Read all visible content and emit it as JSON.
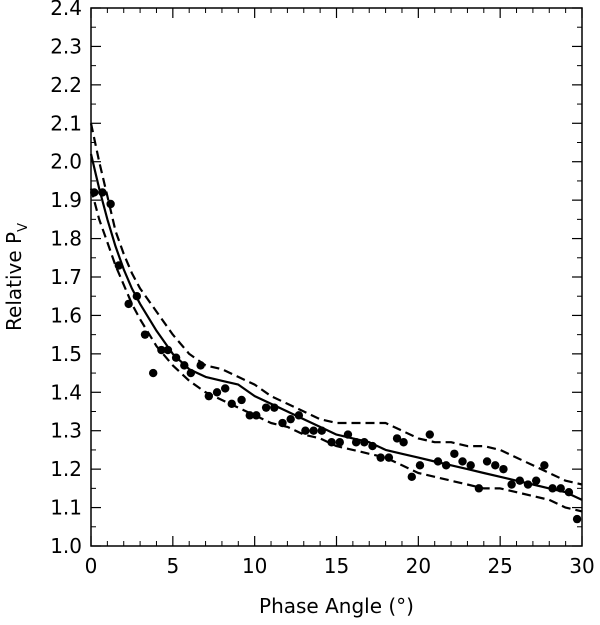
{
  "chart_data": {
    "type": "scatter",
    "xlabel": "Phase Angle (°)",
    "ylabel_main": "Relative P",
    "ylabel_sub": "V",
    "xlim": [
      0,
      30
    ],
    "ylim": [
      1.0,
      2.4
    ],
    "x_ticks": [
      "0",
      "5",
      "10",
      "15",
      "20",
      "25",
      "30"
    ],
    "y_ticks": [
      "1.0",
      "1.1",
      "1.2",
      "1.3",
      "1.4",
      "1.5",
      "1.6",
      "1.7",
      "1.8",
      "1.9",
      "2.0",
      "2.1",
      "2.2",
      "2.3",
      "2.4"
    ],
    "grid": false,
    "series": [
      {
        "style": "points",
        "points": [
          [
            0.2,
            1.92
          ],
          [
            0.7,
            1.92
          ],
          [
            1.2,
            1.89
          ],
          [
            1.7,
            1.73
          ],
          [
            2.3,
            1.63
          ],
          [
            2.8,
            1.65
          ],
          [
            3.3,
            1.55
          ],
          [
            3.8,
            1.45
          ],
          [
            4.3,
            1.51
          ],
          [
            4.7,
            1.51
          ],
          [
            5.2,
            1.49
          ],
          [
            5.7,
            1.47
          ],
          [
            6.1,
            1.45
          ],
          [
            6.7,
            1.47
          ],
          [
            7.2,
            1.39
          ],
          [
            7.7,
            1.4
          ],
          [
            8.2,
            1.41
          ],
          [
            8.6,
            1.37
          ],
          [
            9.2,
            1.38
          ],
          [
            9.7,
            1.34
          ],
          [
            10.1,
            1.34
          ],
          [
            10.7,
            1.36
          ],
          [
            11.2,
            1.36
          ],
          [
            11.7,
            1.32
          ],
          [
            12.2,
            1.33
          ],
          [
            12.7,
            1.34
          ],
          [
            13.1,
            1.3
          ],
          [
            13.6,
            1.3
          ],
          [
            14.1,
            1.3
          ],
          [
            14.7,
            1.27
          ],
          [
            15.2,
            1.27
          ],
          [
            15.7,
            1.29
          ],
          [
            16.2,
            1.27
          ],
          [
            16.7,
            1.27
          ],
          [
            17.2,
            1.26
          ],
          [
            17.7,
            1.23
          ],
          [
            18.2,
            1.23
          ],
          [
            18.7,
            1.28
          ],
          [
            19.1,
            1.27
          ],
          [
            19.6,
            1.18
          ],
          [
            20.1,
            1.21
          ],
          [
            20.7,
            1.29
          ],
          [
            21.2,
            1.22
          ],
          [
            21.7,
            1.21
          ],
          [
            22.2,
            1.24
          ],
          [
            22.7,
            1.22
          ],
          [
            23.2,
            1.21
          ],
          [
            23.7,
            1.15
          ],
          [
            24.2,
            1.22
          ],
          [
            24.7,
            1.21
          ],
          [
            25.2,
            1.2
          ],
          [
            25.7,
            1.16
          ],
          [
            26.2,
            1.17
          ],
          [
            26.7,
            1.16
          ],
          [
            27.2,
            1.17
          ],
          [
            27.7,
            1.21
          ],
          [
            28.2,
            1.15
          ],
          [
            28.7,
            1.15
          ],
          [
            29.2,
            1.14
          ],
          [
            29.7,
            1.07
          ]
        ]
      },
      {
        "style": "solid",
        "points": [
          [
            0,
            2.02
          ],
          [
            0.5,
            1.93
          ],
          [
            1,
            1.85
          ],
          [
            1.5,
            1.78
          ],
          [
            2,
            1.72
          ],
          [
            2.5,
            1.67
          ],
          [
            3,
            1.63
          ],
          [
            4,
            1.56
          ],
          [
            5,
            1.5
          ],
          [
            6,
            1.46
          ],
          [
            7,
            1.44
          ],
          [
            8,
            1.43
          ],
          [
            9,
            1.42
          ],
          [
            10,
            1.39
          ],
          [
            11,
            1.37
          ],
          [
            12,
            1.35
          ],
          [
            13,
            1.33
          ],
          [
            14,
            1.31
          ],
          [
            15,
            1.29
          ],
          [
            16,
            1.28
          ],
          [
            17,
            1.27
          ],
          [
            18,
            1.25
          ],
          [
            19,
            1.24
          ],
          [
            20,
            1.23
          ],
          [
            21,
            1.22
          ],
          [
            22,
            1.21
          ],
          [
            23,
            1.2
          ],
          [
            24,
            1.19
          ],
          [
            25,
            1.18
          ],
          [
            26,
            1.17
          ],
          [
            27,
            1.16
          ],
          [
            28,
            1.15
          ],
          [
            29,
            1.14
          ],
          [
            30,
            1.12
          ]
        ]
      },
      {
        "style": "dashed",
        "points": [
          [
            0,
            2.1
          ],
          [
            0.5,
            2.0
          ],
          [
            1,
            1.91
          ],
          [
            1.5,
            1.82
          ],
          [
            2,
            1.76
          ],
          [
            2.5,
            1.71
          ],
          [
            3,
            1.67
          ],
          [
            4,
            1.61
          ],
          [
            5,
            1.55
          ],
          [
            6,
            1.5
          ],
          [
            7,
            1.47
          ],
          [
            8,
            1.46
          ],
          [
            9,
            1.44
          ],
          [
            10,
            1.42
          ],
          [
            11,
            1.39
          ],
          [
            12,
            1.37
          ],
          [
            13,
            1.35
          ],
          [
            14,
            1.33
          ],
          [
            15,
            1.32
          ],
          [
            16,
            1.32
          ],
          [
            17,
            1.32
          ],
          [
            18,
            1.32
          ],
          [
            19,
            1.3
          ],
          [
            20,
            1.28
          ],
          [
            21,
            1.27
          ],
          [
            22,
            1.27
          ],
          [
            23,
            1.26
          ],
          [
            24,
            1.26
          ],
          [
            25,
            1.25
          ],
          [
            26,
            1.23
          ],
          [
            27,
            1.21
          ],
          [
            28,
            1.19
          ],
          [
            29,
            1.17
          ],
          [
            30,
            1.16
          ]
        ]
      },
      {
        "style": "dashed",
        "points": [
          [
            0,
            1.93
          ],
          [
            0.5,
            1.85
          ],
          [
            1,
            1.79
          ],
          [
            1.5,
            1.73
          ],
          [
            2,
            1.68
          ],
          [
            2.5,
            1.63
          ],
          [
            3,
            1.59
          ],
          [
            4,
            1.52
          ],
          [
            5,
            1.47
          ],
          [
            6,
            1.43
          ],
          [
            7,
            1.4
          ],
          [
            8,
            1.38
          ],
          [
            9,
            1.36
          ],
          [
            10,
            1.34
          ],
          [
            11,
            1.32
          ],
          [
            12,
            1.31
          ],
          [
            13,
            1.29
          ],
          [
            14,
            1.28
          ],
          [
            15,
            1.26
          ],
          [
            16,
            1.25
          ],
          [
            17,
            1.24
          ],
          [
            18,
            1.23
          ],
          [
            19,
            1.21
          ],
          [
            20,
            1.19
          ],
          [
            21,
            1.18
          ],
          [
            22,
            1.17
          ],
          [
            23,
            1.16
          ],
          [
            24,
            1.15
          ],
          [
            25,
            1.15
          ],
          [
            26,
            1.14
          ],
          [
            27,
            1.13
          ],
          [
            28,
            1.12
          ],
          [
            29,
            1.1
          ],
          [
            30,
            1.09
          ]
        ]
      }
    ]
  }
}
